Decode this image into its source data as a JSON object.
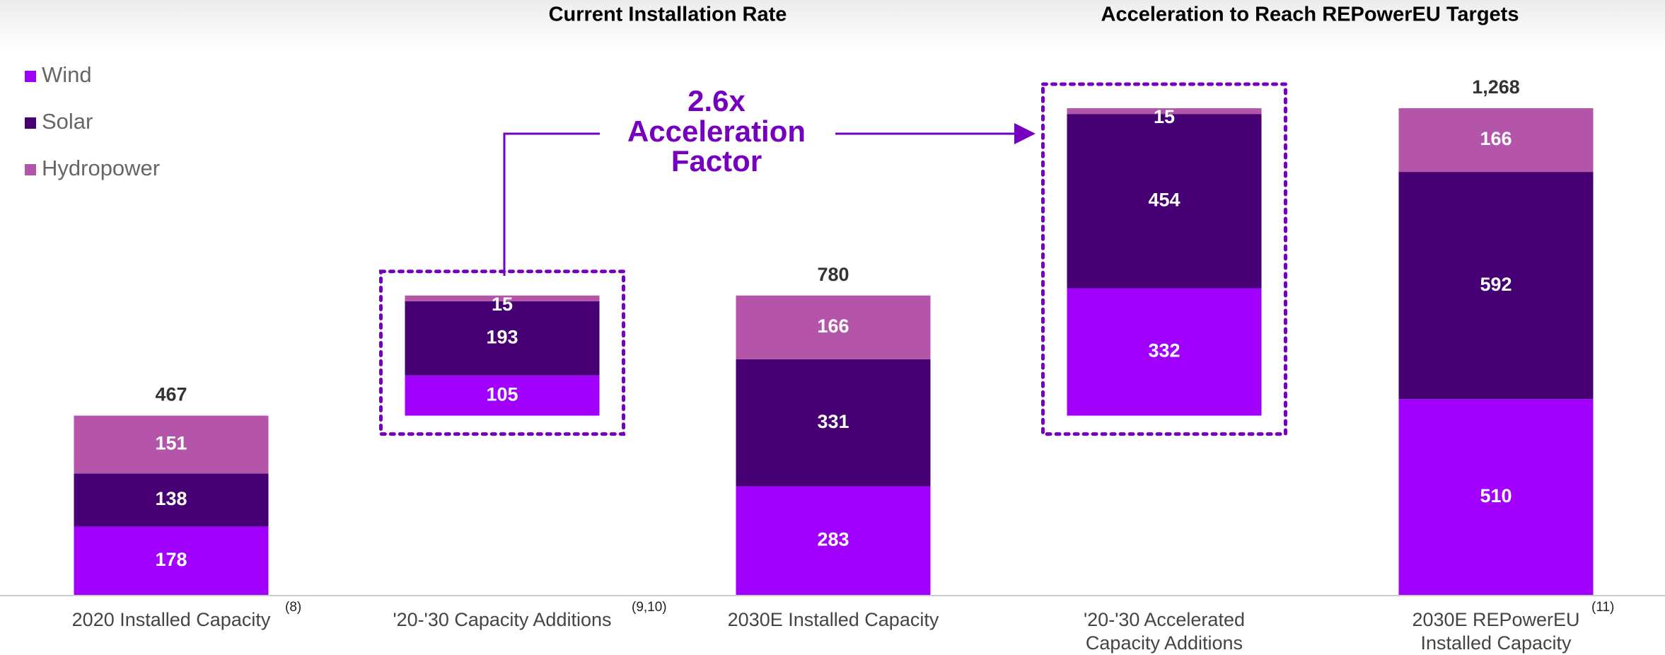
{
  "chart_data": {
    "type": "stacked-bar",
    "group_headers": [
      "Current Installation Rate",
      "Acceleration to Reach REPowerEU Targets"
    ],
    "annotation": [
      "2.6x",
      "Acceleration",
      "Factor"
    ],
    "categories": [
      "2020 Installed Capacity",
      "'20-'30 Capacity Additions",
      "2030E Installed Capacity",
      "'20-'30 Accelerated Capacity Additions",
      "2030E REPowerEU Installed Capacity"
    ],
    "footnotes": [
      "(8)",
      "(9,10)",
      null,
      null,
      "(11)"
    ],
    "series": [
      {
        "name": "Wind",
        "color": "#a100ff",
        "values": [
          178,
          105,
          283,
          332,
          510
        ]
      },
      {
        "name": "Solar",
        "color": "#460073",
        "values": [
          138,
          193,
          331,
          454,
          592
        ]
      },
      {
        "name": "Hydropower",
        "color": "#b455aa",
        "values": [
          151,
          15,
          166,
          15,
          166
        ]
      }
    ],
    "totals": [
      467,
      null,
      780,
      null,
      1268
    ],
    "total_labels": [
      "467",
      null,
      "780",
      null,
      "1,268"
    ],
    "ylim": [
      0,
      1268
    ]
  }
}
